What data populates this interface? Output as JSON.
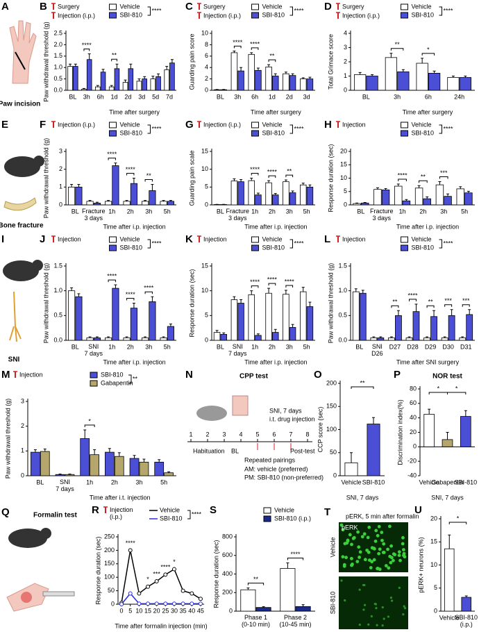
{
  "chart_data": [
    {
      "type": "bar",
      "panel": "B",
      "markers": [
        "Surgery",
        "Injection (i.p.)"
      ],
      "ylabel": "Paw withdrawal threshold (g)",
      "xlabel": "Time after surgery",
      "categories": [
        "BL",
        "3h",
        "6h",
        "1d",
        "2d",
        "3d",
        "5d",
        "7d"
      ],
      "series": [
        {
          "name": "Vehicle",
          "color": "#ffffff",
          "values": [
            1.05,
            0.05,
            0.15,
            0.15,
            0.35,
            0.4,
            0.5,
            0.9
          ],
          "errors": [
            0.1,
            0.03,
            0.06,
            0.06,
            0.1,
            0.1,
            0.12,
            0.15
          ]
        },
        {
          "name": "SBI-810",
          "color": "#4a4fd6",
          "values": [
            1.05,
            1.35,
            0.8,
            0.95,
            0.95,
            0.5,
            0.6,
            1.2
          ],
          "errors": [
            0.1,
            0.25,
            0.12,
            0.2,
            0.2,
            0.1,
            0.12,
            0.15
          ]
        }
      ],
      "legend_sig": "****",
      "sig": [
        null,
        "****",
        null,
        "**",
        null,
        null,
        null,
        null
      ],
      "ylim": [
        0,
        2.5
      ],
      "yticks": [
        {
          "value": 0,
          "label": "0.0"
        },
        0.5,
        {
          "value": 1,
          "label": "1.0"
        },
        1.5,
        {
          "value": 2,
          "label": "2.0"
        },
        2.5
      ]
    },
    {
      "type": "bar",
      "panel": "C",
      "markers": [
        "Surgery",
        "Injection (i.p.)"
      ],
      "ylabel": "Guarding pain score",
      "xlabel": "Time after surgery",
      "categories": [
        "BL",
        "3h",
        "6h",
        "1d",
        "2d",
        "3d"
      ],
      "series": [
        {
          "name": "Vehicle",
          "color": "#ffffff",
          "values": [
            0.1,
            6.6,
            6.3,
            4.1,
            2.9,
            2.0
          ],
          "errors": [
            0.05,
            0.3,
            0.3,
            0.4,
            0.3,
            0.2
          ]
        },
        {
          "name": "SBI-810",
          "color": "#4a4fd6",
          "values": [
            0.1,
            3.4,
            3.5,
            2.5,
            2.6,
            2.0
          ],
          "errors": [
            0.05,
            0.6,
            0.4,
            0.4,
            0.3,
            0.3
          ]
        }
      ],
      "legend_sig": "****",
      "sig": [
        null,
        "****",
        "****",
        "**",
        null,
        null
      ],
      "ylim": [
        0,
        10
      ],
      "yticks": [
        0,
        2,
        4,
        6,
        8,
        10
      ]
    },
    {
      "type": "bar",
      "panel": "D",
      "markers": [
        "Surgery",
        "Injection (i.p.)"
      ],
      "ylabel": "Total Grimace score",
      "xlabel": "Time after surgery",
      "categories": [
        "BL",
        "3h",
        "6h",
        "24h"
      ],
      "series": [
        {
          "name": "Vehicle",
          "color": "#ffffff",
          "values": [
            1.1,
            2.3,
            1.9,
            0.9
          ],
          "errors": [
            0.15,
            0.3,
            0.35,
            0.1
          ]
        },
        {
          "name": "SBI-810",
          "color": "#4a4fd6",
          "values": [
            1.0,
            1.3,
            1.2,
            0.9
          ],
          "errors": [
            0.1,
            0.15,
            0.15,
            0.1
          ]
        }
      ],
      "legend_sig": "****",
      "sig": [
        null,
        "**",
        "*",
        null
      ],
      "ylim": [
        0,
        4
      ],
      "yticks": [
        0,
        1,
        2,
        3,
        4
      ]
    },
    {
      "type": "bar",
      "panel": "F",
      "markers": [
        "Injection (i.p.)"
      ],
      "ylabel": "Paw withdrawal threshold (g)",
      "xlabel": "Time after i.p. injection",
      "categories": [
        "BL",
        "Fracture\n3 days",
        "1h",
        "2h",
        "3h",
        "5h"
      ],
      "series": [
        {
          "name": "Vehicle",
          "color": "#ffffff",
          "values": [
            1.0,
            0.2,
            0.2,
            0.2,
            0.2,
            0.2
          ],
          "errors": [
            0.15,
            0.05,
            0.05,
            0.05,
            0.05,
            0.05
          ]
        },
        {
          "name": "SBI-810",
          "color": "#4a4fd6",
          "values": [
            1.0,
            0.1,
            2.2,
            1.2,
            0.8,
            0.2
          ],
          "errors": [
            0.15,
            0.05,
            0.15,
            0.3,
            0.35,
            0.05
          ]
        }
      ],
      "legend_sig": "****",
      "sig": [
        null,
        null,
        "****",
        "****",
        "**",
        null
      ],
      "ylim": [
        0,
        3
      ],
      "yticks": [
        0,
        1,
        2,
        3
      ]
    },
    {
      "type": "bar",
      "panel": "G",
      "markers": [
        "Injection (i.p.)"
      ],
      "ylabel": "Guarding pain scale",
      "xlabel": "Time after i.p. injection",
      "categories": [
        "BL",
        "Fracture\n3 days",
        "1h",
        "2h",
        "3h",
        "5h"
      ],
      "series": [
        {
          "name": "Vehicle",
          "color": "#ffffff",
          "values": [
            0.1,
            6.7,
            6.8,
            6.2,
            6.5,
            5.6
          ],
          "errors": [
            0.05,
            0.6,
            0.7,
            0.6,
            0.5,
            0.5
          ]
        },
        {
          "name": "SBI-810",
          "color": "#4a4fd6",
          "values": [
            0.1,
            6.5,
            2.8,
            2.8,
            3.4,
            5.0
          ],
          "errors": [
            0.05,
            0.6,
            0.5,
            0.4,
            0.5,
            0.6
          ]
        }
      ],
      "legend_sig": "****",
      "sig": [
        null,
        null,
        "****",
        "****",
        "**",
        null
      ],
      "ylim": [
        0,
        15
      ],
      "yticks": [
        0,
        5,
        10,
        15
      ]
    },
    {
      "type": "bar",
      "panel": "H",
      "markers": [
        "Injection"
      ],
      "ylabel": "Response duration (sec)",
      "xlabel": "Time after i.p. injection",
      "categories": [
        "BL",
        "Fracture\n3 days",
        "1h",
        "2h",
        "3h",
        "5h"
      ],
      "series": [
        {
          "name": "Vehicle",
          "color": "#ffffff",
          "values": [
            0.5,
            5.8,
            7.0,
            6.3,
            7.5,
            6.0
          ],
          "errors": [
            0.2,
            0.6,
            0.8,
            0.9,
            1.2,
            0.8
          ]
        },
        {
          "name": "SBI-810",
          "color": "#4a4fd6",
          "values": [
            0.7,
            5.6,
            1.5,
            2.3,
            3.2,
            4.5
          ],
          "errors": [
            0.2,
            0.5,
            0.5,
            0.7,
            0.9,
            0.6
          ]
        }
      ],
      "legend_sig": "****",
      "sig": [
        null,
        null,
        "****",
        "**",
        "***",
        null
      ],
      "ylim": [
        0,
        20
      ],
      "yticks": [
        0,
        5,
        10,
        15,
        20
      ]
    },
    {
      "type": "bar",
      "panel": "J",
      "markers": [
        "Injection"
      ],
      "ylabel": "Paw withdrawal threshold (g)",
      "xlabel": "Time after i.p. injection",
      "categories": [
        "BL",
        "SNI\n7 days",
        "1h",
        "2h",
        "3h",
        "5h"
      ],
      "series": [
        {
          "name": "Vehicle",
          "color": "#ffffff",
          "values": [
            1.0,
            0.05,
            0.05,
            0.05,
            0.05,
            0.05
          ],
          "errors": [
            0.06,
            0.02,
            0.02,
            0.02,
            0.02,
            0.02
          ]
        },
        {
          "name": "SBI-810",
          "color": "#4a4fd6",
          "values": [
            0.88,
            0.05,
            1.05,
            0.65,
            0.78,
            0.28
          ],
          "errors": [
            0.06,
            0.02,
            0.07,
            0.1,
            0.1,
            0.05
          ]
        }
      ],
      "legend_sig": "****",
      "sig": [
        null,
        null,
        "****",
        "****",
        "****",
        null
      ],
      "ylim": [
        0,
        1.5
      ],
      "yticks": [
        {
          "value": 0,
          "label": "0.0"
        },
        0.5,
        {
          "value": 1,
          "label": "1.0"
        },
        1.5
      ]
    },
    {
      "type": "bar",
      "panel": "K",
      "markers": [
        "Injection"
      ],
      "ylabel": "Response duration (sec)",
      "xlabel": "Time after i.p. injection",
      "categories": [
        "BL",
        "SNI\n7 days",
        "1h",
        "2h",
        "3h",
        "5h"
      ],
      "series": [
        {
          "name": "Vehicle",
          "color": "#ffffff",
          "values": [
            1.6,
            8.2,
            9.2,
            9.5,
            9.3,
            9.8
          ],
          "errors": [
            0.4,
            0.6,
            0.8,
            1.0,
            0.8,
            0.9
          ]
        },
        {
          "name": "SBI-810",
          "color": "#4a4fd6",
          "values": [
            1.2,
            7.5,
            1.0,
            1.6,
            2.6,
            6.8
          ],
          "errors": [
            0.3,
            0.7,
            0.3,
            0.6,
            0.6,
            0.9
          ]
        }
      ],
      "legend_sig": "****",
      "sig": [
        null,
        null,
        "****",
        "****",
        "****",
        null
      ],
      "ylim": [
        0,
        15
      ],
      "yticks": [
        0,
        5,
        10,
        15
      ]
    },
    {
      "type": "bar",
      "panel": "L",
      "markers": [
        "Injection"
      ],
      "ylabel": "Paw withdrawal threshold (g)",
      "xlabel": "Time after SNI surgery",
      "categories": [
        "BL",
        "SNI\nD26",
        "D27",
        "D28",
        "D29",
        "D30",
        "D31"
      ],
      "series": [
        {
          "name": "Vehicle",
          "color": "#ffffff",
          "values": [
            0.98,
            0.05,
            0.05,
            0.05,
            0.05,
            0.05,
            0.05
          ],
          "errors": [
            0.06,
            0.02,
            0.02,
            0.02,
            0.02,
            0.02,
            0.02
          ]
        },
        {
          "name": "SBI-810",
          "color": "#4a4fd6",
          "values": [
            0.95,
            0.05,
            0.5,
            0.58,
            0.48,
            0.5,
            0.52
          ],
          "errors": [
            0.06,
            0.02,
            0.1,
            0.15,
            0.12,
            0.12,
            0.1
          ]
        }
      ],
      "legend_sig": "****",
      "sig": [
        null,
        null,
        "**",
        "****",
        "**",
        "***",
        "***"
      ],
      "ylim": [
        0,
        1.5
      ],
      "yticks": [
        {
          "value": 0,
          "label": "0.0"
        },
        0.5,
        {
          "value": 1,
          "label": "1.0"
        },
        1.5
      ]
    },
    {
      "type": "bar",
      "panel": "M",
      "markers": [
        "Injection"
      ],
      "ylabel": "Paw withdrawal threshold (g)",
      "xlabel": "Time after i.t. injection",
      "categories": [
        "BL",
        "SNI\n7 days",
        "1h",
        "2h",
        "3h",
        "5h"
      ],
      "series": [
        {
          "name": "SBI-810",
          "color": "#4a4fd6",
          "values": [
            0.95,
            0.05,
            1.5,
            0.95,
            0.7,
            0.55
          ],
          "errors": [
            0.1,
            0.02,
            0.35,
            0.15,
            0.12,
            0.1
          ]
        },
        {
          "name": "Gabapentin",
          "color": "#b5a76c",
          "values": [
            0.98,
            0.05,
            0.85,
            0.78,
            0.55,
            0.12
          ],
          "errors": [
            0.1,
            0.02,
            0.2,
            0.15,
            0.12,
            0.04
          ]
        }
      ],
      "legend_sig": "**",
      "sig": [
        null,
        null,
        "*",
        null,
        null,
        null
      ],
      "ylim": [
        0,
        3
      ],
      "yticks": [
        0,
        1,
        2,
        3
      ]
    },
    {
      "type": "bar",
      "panel": "O",
      "ylabel": "CCP score (sec)",
      "xlabel": "SNI, 7 days",
      "categories": [
        "Vehicle",
        "SBI-810"
      ],
      "values": [
        28,
        112
      ],
      "errors": [
        22,
        14
      ],
      "colors": [
        "#ffffff",
        "#4a4fd6"
      ],
      "brackets": [
        {
          "label": "**",
          "between": [
            "Vehicle",
            "SBI-810"
          ]
        }
      ],
      "ylim": [
        0,
        200
      ],
      "yticks": [
        0,
        50,
        100,
        150,
        200
      ]
    },
    {
      "type": "bar",
      "panel": "P",
      "title": "NOR test",
      "ylabel": "Discrimination index(%)",
      "xlabel": "SNI, 7 days",
      "categories": [
        "Vehicle",
        "Gabapentin",
        "SBI-810"
      ],
      "values": [
        45,
        10,
        42
      ],
      "errors": [
        7,
        10,
        8
      ],
      "colors": [
        "#ffffff",
        "#b5a76c",
        "#4a4fd6"
      ],
      "brackets": [
        {
          "label": "*",
          "between": [
            "Vehicle",
            "Gabapentin"
          ]
        },
        {
          "label": "*",
          "between": [
            "Gabapentin",
            "SBI-810"
          ]
        }
      ],
      "ylim": [
        -40,
        80
      ],
      "yticks": [
        -40,
        -20,
        0,
        20,
        40,
        60,
        80
      ]
    },
    {
      "type": "line",
      "panel": "R",
      "markers": [
        "Injection\n(i.p.)"
      ],
      "ylabel": "Response duration (sec)",
      "xlabel": "Time after formalin injection (min)",
      "x": [
        0,
        5,
        10,
        15,
        20,
        25,
        30,
        35,
        40,
        45
      ],
      "series": [
        {
          "name": "Vehicle",
          "color": "#000000",
          "values": [
            5,
            200,
            40,
            65,
            85,
            110,
            130,
            50,
            40,
            20
          ]
        },
        {
          "name": "SBI-810",
          "color": "#2a2ae0",
          "values": [
            0,
            40,
            2,
            2,
            2,
            2,
            2,
            2,
            2,
            2
          ]
        }
      ],
      "legend_sig": "****",
      "sig": [
        null,
        "****",
        null,
        "*",
        "***",
        "****",
        "*",
        null,
        null,
        null
      ],
      "xlim": [
        -2,
        47
      ],
      "xticks": [
        0,
        5,
        10,
        15,
        20,
        25,
        30,
        35,
        40,
        45
      ],
      "ylim": [
        0,
        250
      ],
      "yticks": [
        0,
        50,
        100,
        150,
        200,
        250
      ]
    },
    {
      "type": "bar",
      "panel": "S",
      "ylabel": "Response duration (sec)",
      "categories": [
        "Phase 1\n(0-10 min)",
        "Phase 2\n(10-45 min)"
      ],
      "series": [
        {
          "name": "Vehicle",
          "color": "#ffffff",
          "values": [
            230,
            460
          ],
          "errors": [
            20,
            60
          ]
        },
        {
          "name": "SBI-810 (i.p.)",
          "color": "#1a2a8c",
          "values": [
            40,
            50
          ],
          "errors": [
            8,
            20
          ]
        }
      ],
      "sig": [
        "**",
        "****"
      ],
      "ylim": [
        0,
        800
      ],
      "yticks": [
        0,
        200,
        400,
        600,
        800
      ]
    },
    {
      "type": "bar",
      "panel": "U",
      "ylabel": "pERK+ neurons (%)",
      "categories": [
        "Vehicle",
        "SBI-810\n(i.p.)"
      ],
      "values": [
        13.5,
        3
      ],
      "errors": [
        3,
        0.3
      ],
      "colors": [
        "#ffffff",
        "#4a4fd6"
      ],
      "brackets": [
        {
          "label": "*",
          "between": [
            "Vehicle",
            "SBI-810\n(i.p.)"
          ]
        }
      ],
      "ylim": [
        0,
        20
      ],
      "yticks": [
        0,
        5,
        10,
        15,
        20
      ]
    }
  ],
  "illustrations": {
    "A": {
      "panel": "A",
      "label": "Paw incision"
    },
    "E": {
      "panel": "E",
      "label": "Bone fracture"
    },
    "I": {
      "panel": "I",
      "label": "SNI"
    },
    "N": {
      "panel": "N",
      "title": "CPP test",
      "note": [
        "SNI, 7 days",
        "i.t. drug injection"
      ],
      "days": [
        1,
        2,
        3,
        4,
        5,
        6,
        7,
        8
      ],
      "phases": [
        "Habituation",
        "BL",
        "Repeated pairings",
        "Post-test"
      ],
      "pairings": [
        "AM: vehicle (preferred)",
        "PM: SBI-810 (non-preferred)"
      ]
    },
    "Q": {
      "panel": "Q",
      "label": "Formalin test"
    },
    "T": {
      "panel": "T",
      "title": "pERK, 5 min after formalin",
      "stain": "pERK",
      "rows": [
        "Vehicle",
        "SBI-810"
      ]
    }
  }
}
